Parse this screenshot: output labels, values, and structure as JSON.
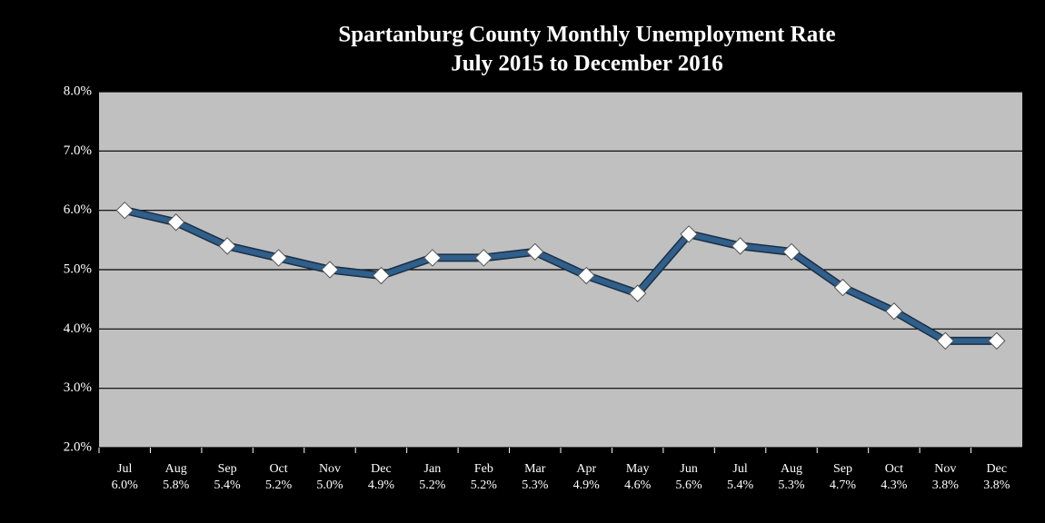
{
  "chart_data": {
    "type": "line",
    "title": "Spartanburg County Monthly Unemployment Rate",
    "subtitle": "July 2015 to December 2016",
    "categories": [
      "Jul",
      "Aug",
      "Sep",
      "Oct",
      "Nov",
      "Dec",
      "Jan",
      "Feb",
      "Mar",
      "Apr",
      "May",
      "Jun",
      "Jul",
      "Aug",
      "Sep",
      "Oct",
      "Nov",
      "Dec"
    ],
    "values": [
      6.0,
      5.8,
      5.4,
      5.2,
      5.0,
      4.9,
      5.2,
      5.2,
      5.3,
      4.9,
      4.6,
      5.6,
      5.4,
      5.3,
      4.7,
      4.3,
      3.8,
      3.8
    ],
    "value_labels": [
      "6.0%",
      "5.8%",
      "5.4%",
      "5.2%",
      "5.0%",
      "4.9%",
      "5.2%",
      "5.2%",
      "5.3%",
      "4.9%",
      "4.6%",
      "5.6%",
      "5.4%",
      "5.3%",
      "4.7%",
      "4.3%",
      "3.8%",
      "3.8%"
    ],
    "color": "#2f5f8a",
    "marker_color": "#ffffff",
    "ylim": [
      2,
      8
    ],
    "yticks": [
      {
        "value": 2,
        "label": "2.0%"
      },
      {
        "value": 3,
        "label": "3.0%"
      },
      {
        "value": 4,
        "label": "4.0%"
      },
      {
        "value": 5,
        "label": "5.0%"
      },
      {
        "value": 6,
        "label": "6.0%"
      },
      {
        "value": 7,
        "label": "7.0%"
      },
      {
        "value": 8,
        "label": "8.0%"
      }
    ],
    "grid": true
  }
}
